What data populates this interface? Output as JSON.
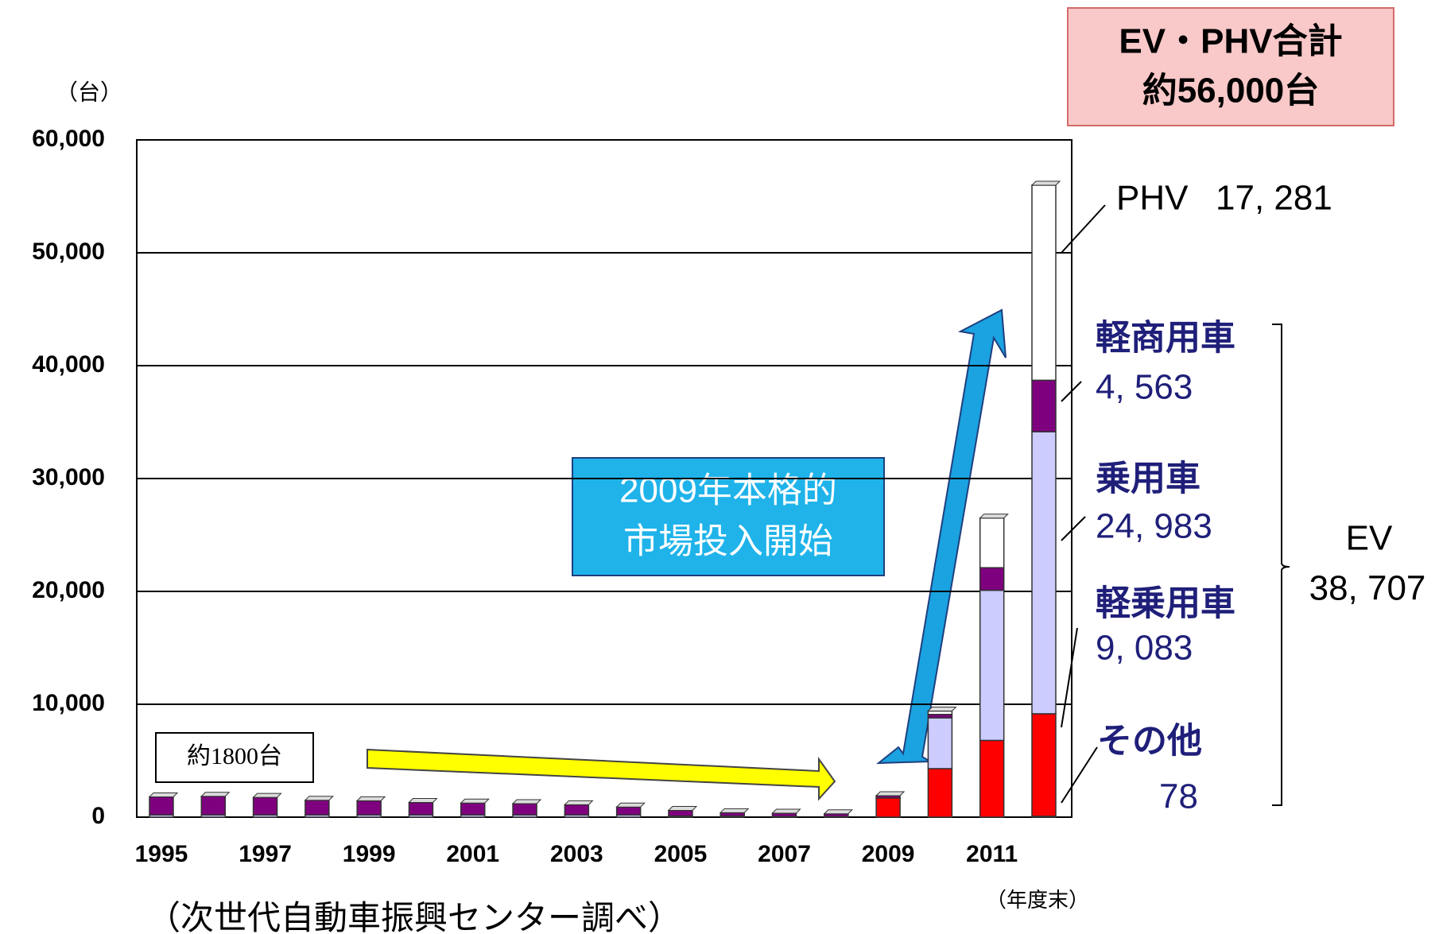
{
  "chart_data": {
    "type": "stacked_bar",
    "y_label": "（台）",
    "x_label": "（年度末）",
    "source": "（次世代自動車振興センター調べ）",
    "categories": [
      "1995",
      null,
      "1997",
      null,
      "1999",
      null,
      "2001",
      null,
      "2003",
      null,
      "2005",
      null,
      "2007",
      null,
      "2009",
      null,
      "2011",
      null
    ],
    "series": [
      {
        "name": "その他",
        "color": "#ff0000",
        "values": [
          0,
          0,
          0,
          0,
          0,
          0,
          0,
          0,
          0,
          0,
          0,
          0,
          0,
          0,
          0,
          0,
          0,
          78
        ],
        "value_labels": [
          null,
          null,
          null,
          null,
          null,
          null,
          null,
          null,
          null,
          null,
          null,
          null,
          null,
          null,
          null,
          null,
          null,
          "78"
        ]
      },
      {
        "name": "軽乗用車",
        "color": "#ff0000",
        "values": [
          0,
          0,
          0,
          0,
          0,
          0,
          0,
          0,
          0,
          0,
          0,
          0,
          0,
          0,
          1700,
          4300,
          6800,
          9083
        ],
        "value_labels": [
          null,
          null,
          null,
          null,
          null,
          null,
          null,
          null,
          null,
          null,
          null,
          null,
          null,
          null,
          null,
          null,
          null,
          "9, 083"
        ]
      },
      {
        "name": "乗用車",
        "color": "#ccccff",
        "values": [
          200,
          200,
          200,
          200,
          200,
          200,
          200,
          200,
          200,
          200,
          100,
          100,
          50,
          50,
          0,
          4500,
          13300,
          24983
        ],
        "value_labels": [
          null,
          null,
          null,
          null,
          null,
          null,
          null,
          null,
          null,
          null,
          null,
          null,
          null,
          null,
          null,
          null,
          null,
          "24, 983"
        ]
      },
      {
        "name": "軽商用車",
        "color": "#7f007f",
        "values": [
          1600,
          1650,
          1550,
          1300,
          1250,
          1100,
          1050,
          1000,
          900,
          700,
          500,
          300,
          300,
          250,
          200,
          300,
          2000,
          4563
        ],
        "value_labels": [
          null,
          null,
          null,
          null,
          null,
          null,
          null,
          null,
          null,
          null,
          null,
          null,
          null,
          null,
          null,
          null,
          null,
          "4, 563"
        ]
      },
      {
        "name": "PHV",
        "color": "#ffffff",
        "values": [
          0,
          0,
          0,
          0,
          0,
          0,
          0,
          0,
          0,
          0,
          0,
          0,
          0,
          0,
          0,
          300,
          4400,
          17281
        ],
        "value_labels": [
          null,
          null,
          null,
          null,
          null,
          null,
          null,
          null,
          null,
          null,
          null,
          null,
          null,
          null,
          null,
          null,
          null,
          "17, 281"
        ]
      }
    ],
    "ylim": [
      0,
      60000
    ],
    "yticks": [
      0,
      {
        "value": 10000,
        "label": "10,000"
      },
      {
        "value": 20000,
        "label": "20,000"
      },
      {
        "value": 30000,
        "label": "30,000"
      },
      {
        "value": 40000,
        "label": "40,000"
      },
      {
        "value": 50000,
        "label": "50,000"
      },
      {
        "value": 60000,
        "label": "60,000"
      }
    ],
    "grid": true,
    "annotations": {
      "total_box": [
        "EV・PHV合計",
        "約56,000台"
      ],
      "launch_box": [
        "2009年本格的",
        "市場投入開始"
      ],
      "early_box": "約1800台",
      "ev": {
        "text": "EV",
        "value": 38707,
        "label": "38, 707"
      }
    }
  }
}
